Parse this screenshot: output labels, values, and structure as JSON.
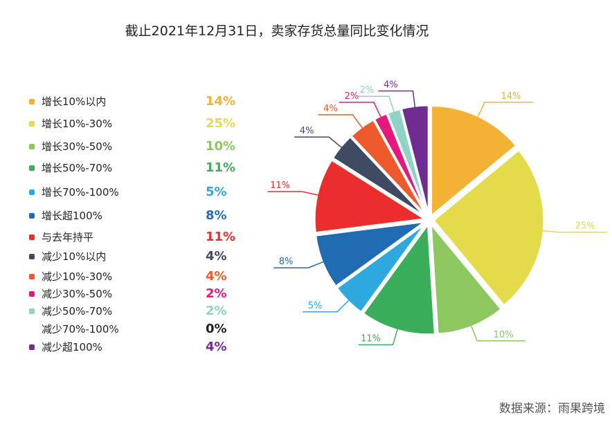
{
  "title": "截止2021年12月31日，卖家存货总量同比变化情况",
  "source": "数据来源：雨果跨境",
  "chart_data": {
    "type": "pie",
    "title": "截止2021年12月31日，卖家存货总量同比变化情况",
    "legend_position": "left",
    "categories": [
      "增长10%以内",
      "增长10%-30%",
      "增长30%-50%",
      "增长50%-70%",
      "增长70%-100%",
      "增长超100%",
      "与去年持平",
      "减少10%以内",
      "减少10%-30%",
      "减少30%-50%",
      "减少50%-70%",
      "减少70%-100%",
      "减少超100%"
    ],
    "values": [
      14,
      25,
      10,
      11,
      5,
      8,
      11,
      4,
      4,
      2,
      2,
      0,
      4
    ],
    "labels": [
      "14%",
      "25%",
      "10%",
      "11%",
      "5%",
      "8%",
      "11%",
      "4%",
      "4%",
      "2%",
      "2%",
      "0%",
      "4%"
    ],
    "colors": [
      "#F3B234",
      "#E3DB4A",
      "#8CC75F",
      "#3BAE5B",
      "#2EA9DF",
      "#1F6CB2",
      "#EC2D2D",
      "#3F4B63",
      "#EE5A2B",
      "#E5197B",
      "#8FD3C6",
      "#222222",
      "#6F2C91"
    ]
  }
}
